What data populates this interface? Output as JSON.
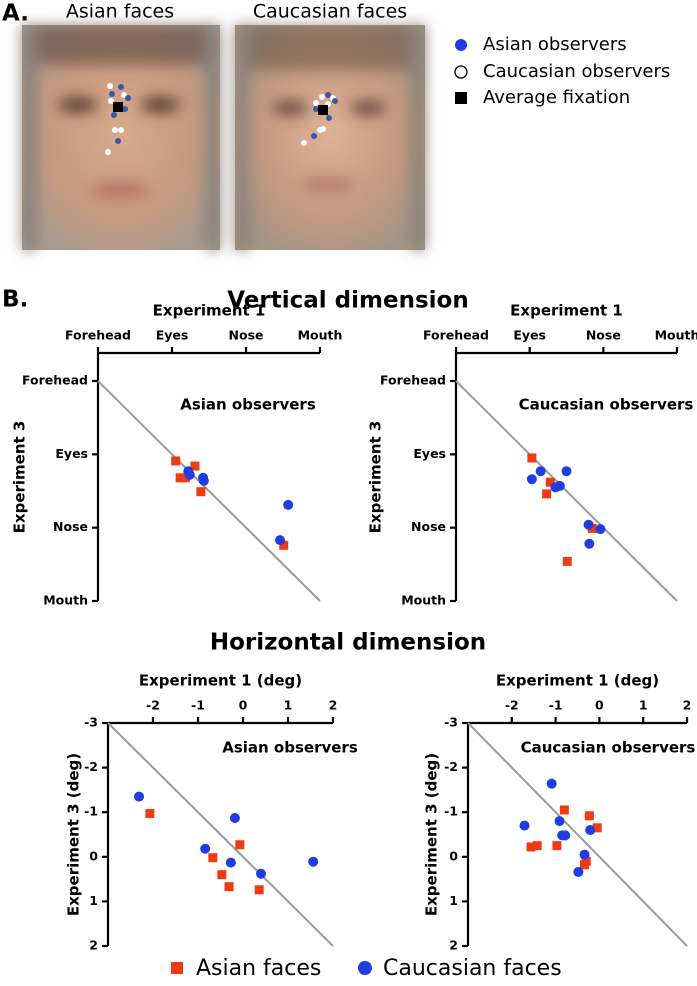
{
  "panel_a": {
    "label": "A.",
    "faces": [
      "Asian faces",
      "Caucasian faces"
    ],
    "legend": [
      "Asian observers",
      "Caucasian observers",
      "Average fixation"
    ]
  },
  "panel_b": {
    "label": "B.",
    "sections": [
      "Vertical dimension",
      "Horizontal dimension"
    ]
  },
  "chart_data": [
    {
      "type": "scatter",
      "title": "Asian observers",
      "x_label": "Experiment 1",
      "y_label": "Experiment 3",
      "xlim": [
        0,
        3
      ],
      "ylim": [
        0,
        3
      ],
      "xticks": [
        {
          "value": 0,
          "label": "Forehead"
        },
        {
          "value": 1,
          "label": "Eyes"
        },
        {
          "value": 2,
          "label": "Nose"
        },
        {
          "value": 3,
          "label": "Mouth"
        }
      ],
      "yticks": [
        {
          "value": 0,
          "label": "Forehead"
        },
        {
          "value": 1,
          "label": "Eyes"
        },
        {
          "value": 2,
          "label": "Nose"
        },
        {
          "value": 3,
          "label": "Mouth"
        }
      ],
      "identity_line": true,
      "series": [
        {
          "name": "Asian faces",
          "color": "#f03a12",
          "marker": "square",
          "x": [
            1.05,
            1.11,
            1.18,
            1.31,
            1.39,
            2.51
          ],
          "values": [
            1.09,
            1.32,
            1.32,
            1.16,
            1.51,
            2.24
          ]
        },
        {
          "name": "Caucasian faces",
          "color": "#1f3de0",
          "marker": "circle",
          "x": [
            1.22,
            1.24,
            1.42,
            1.43,
            2.57,
            2.46
          ],
          "values": [
            1.23,
            1.28,
            1.32,
            1.36,
            1.69,
            2.17
          ]
        }
      ]
    },
    {
      "type": "scatter",
      "title": "Caucasian observers",
      "x_label": "Experiment 1",
      "y_label": "Experiment 3",
      "xlim": [
        0,
        3
      ],
      "ylim": [
        0,
        3
      ],
      "xticks": [
        {
          "value": 0,
          "label": "Forehead"
        },
        {
          "value": 1,
          "label": "Eyes"
        },
        {
          "value": 2,
          "label": "Nose"
        },
        {
          "value": 3,
          "label": "Mouth"
        }
      ],
      "yticks": [
        {
          "value": 0,
          "label": "Forehead"
        },
        {
          "value": 1,
          "label": "Eyes"
        },
        {
          "value": 2,
          "label": "Nose"
        },
        {
          "value": 3,
          "label": "Mouth"
        }
      ],
      "identity_line": true,
      "series": [
        {
          "color": "#f03a12",
          "marker": "square",
          "x": [
            1.03,
            1.28,
            1.23,
            1.85,
            1.51
          ],
          "values": [
            1.05,
            1.38,
            1.54,
            2.01,
            2.46
          ]
        },
        {
          "color": "#1f3de0",
          "marker": "circle",
          "x": [
            1.03,
            1.15,
            1.35,
            1.41,
            1.5,
            1.8,
            1.96,
            1.81
          ],
          "values": [
            1.34,
            1.23,
            1.45,
            1.43,
            1.23,
            1.96,
            2.02,
            2.22
          ]
        }
      ]
    },
    {
      "type": "scatter",
      "title": "Asian observers",
      "x_label": "Experiment 1 (deg)",
      "y_label": "Experiment 3 (deg)",
      "xlim": [
        -3,
        2
      ],
      "ylim": [
        -3,
        2
      ],
      "xticks": [
        -2,
        -1,
        0,
        1,
        2
      ],
      "yticks": [
        -3,
        -2,
        -1,
        0,
        1,
        2
      ],
      "identity_line": true,
      "series": [
        {
          "color": "#f03a12",
          "marker": "square",
          "x": [
            -2.07,
            -0.67,
            -0.47,
            -0.31,
            -0.07,
            0.36
          ],
          "values": [
            -0.97,
            0.02,
            0.4,
            0.67,
            -0.27,
            0.74
          ]
        },
        {
          "color": "#1f3de0",
          "marker": "circle",
          "x": [
            -2.31,
            -0.84,
            -0.18,
            -0.27,
            0.4,
            1.56
          ],
          "values": [
            -1.35,
            -0.18,
            -0.87,
            0.13,
            0.38,
            0.11
          ]
        }
      ]
    },
    {
      "type": "scatter",
      "title": "Caucasian observers",
      "x_label": "Experiment 1 (deg)",
      "y_label": "Experiment 3 (deg)",
      "xlim": [
        -3,
        2
      ],
      "ylim": [
        -3,
        2
      ],
      "xticks": [
        -2,
        -1,
        0,
        1,
        2
      ],
      "yticks": [
        -3,
        -2,
        -1,
        0,
        1,
        2
      ],
      "identity_line": true,
      "series": [
        {
          "color": "#f03a12",
          "marker": "square",
          "x": [
            -1.56,
            -1.42,
            -0.8,
            -0.97,
            -0.23,
            -0.05,
            -0.34,
            -0.3
          ],
          "values": [
            -0.22,
            -0.25,
            -1.05,
            -0.25,
            -0.92,
            -0.65,
            0.18,
            0.1
          ]
        },
        {
          "color": "#1f3de0",
          "marker": "circle",
          "x": [
            -1.71,
            -1.09,
            -0.91,
            -0.85,
            -0.78,
            -0.34,
            -0.48,
            -0.21
          ],
          "values": [
            -0.7,
            -1.64,
            -0.8,
            -0.48,
            -0.48,
            -0.05,
            0.34,
            -0.6
          ]
        }
      ]
    }
  ]
}
